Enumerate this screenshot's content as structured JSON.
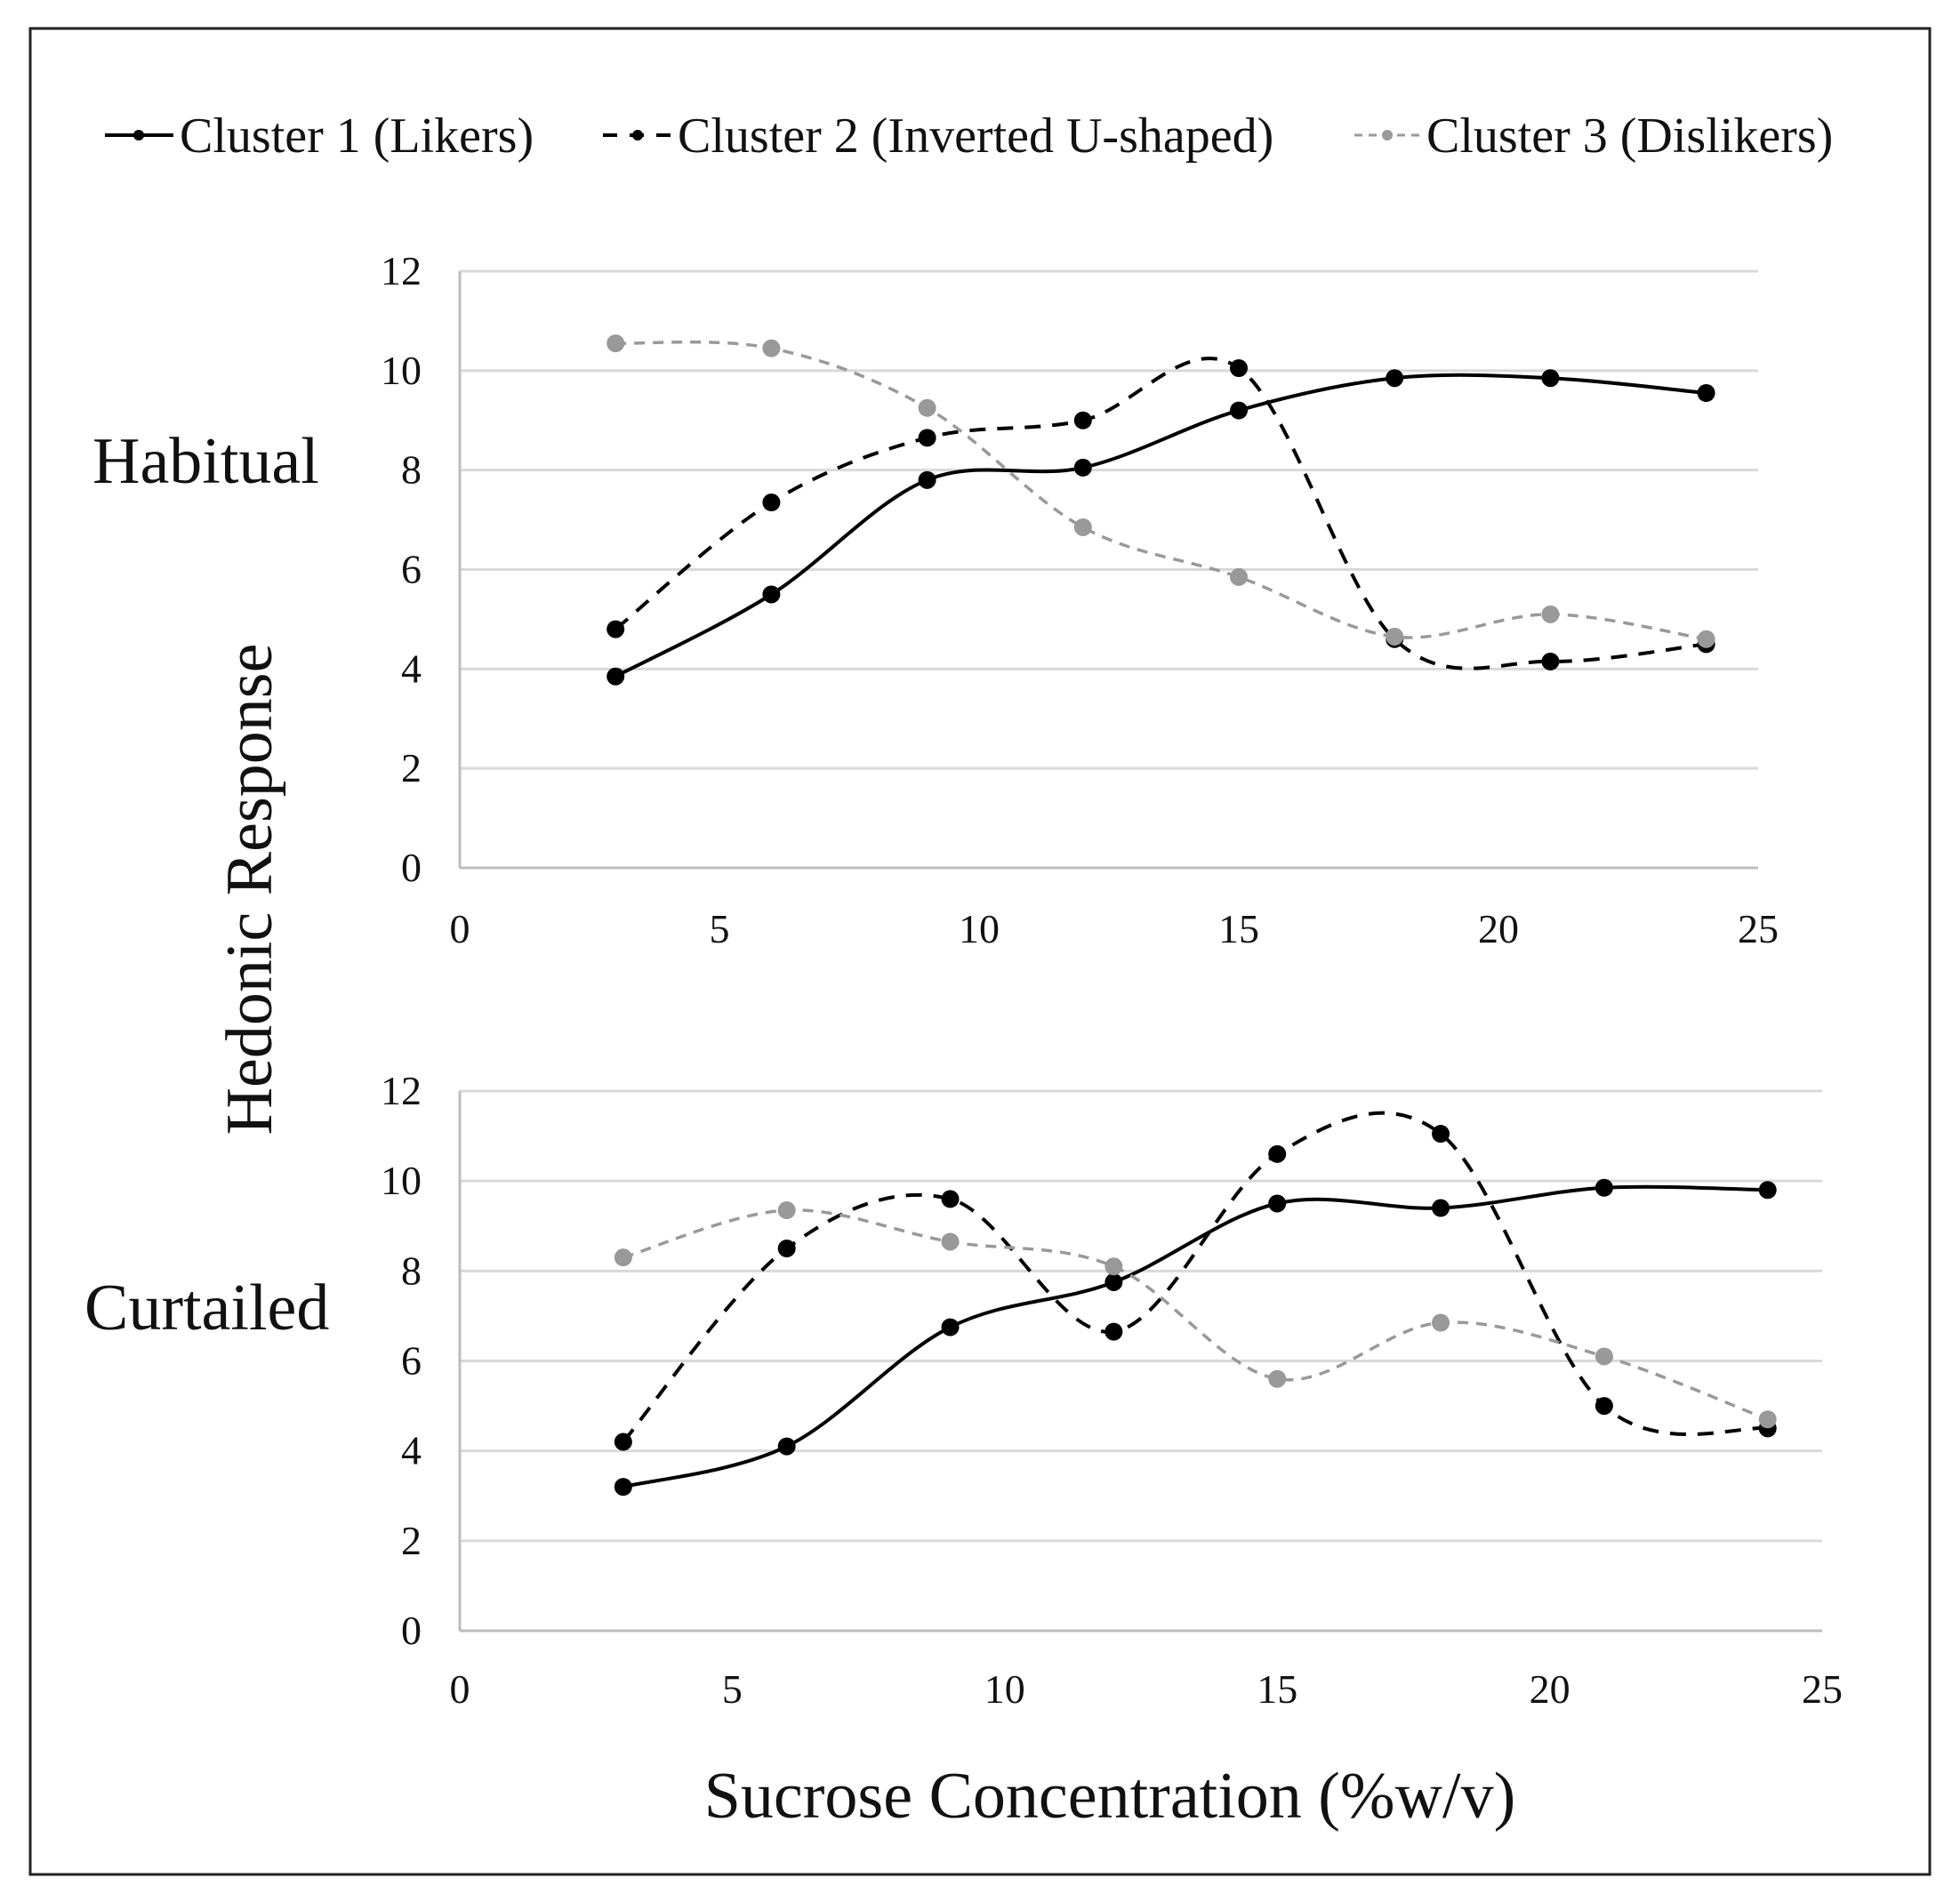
{
  "figure": {
    "legend": [
      {
        "label": "Cluster 1 (Likers)",
        "color": "#000000",
        "dash": "solid"
      },
      {
        "label": "Cluster 2 (Inverted U-shaped)",
        "color": "#000000",
        "dash": "dashed"
      },
      {
        "label": "Cluster 3 (Dislikers)",
        "color": "#999999",
        "dash": "dashed"
      }
    ],
    "ylabel": "Hedonic Response",
    "xlabel": "Sucrose Concentration (%w/v)"
  },
  "chart_data": [
    {
      "type": "line",
      "panel_label": "Habitual",
      "xlabel": "Sucrose Concentration (%w/v)",
      "ylabel": "Hedonic Response",
      "xlim": [
        0,
        25
      ],
      "ylim": [
        0,
        12
      ],
      "x_ticks": [
        "0",
        "5",
        "10",
        "15",
        "20",
        "25"
      ],
      "y_ticks": [
        "0",
        "2",
        "4",
        "6",
        "8",
        "10",
        "12"
      ],
      "x": [
        3,
        6,
        9,
        12,
        15,
        18,
        21,
        24
      ],
      "series": [
        {
          "name": "Cluster 1 (Likers)",
          "color": "#000000",
          "dash": "solid",
          "values": [
            3.85,
            5.5,
            7.8,
            8.05,
            9.2,
            9.85,
            9.85,
            9.55
          ]
        },
        {
          "name": "Cluster 2 (Inverted U-shaped)",
          "color": "#000000",
          "dash": "dashed",
          "values": [
            4.8,
            7.35,
            8.65,
            9.0,
            10.05,
            4.6,
            4.15,
            4.5
          ]
        },
        {
          "name": "Cluster 3 (Dislikers)",
          "color": "#999999",
          "dash": "dashed",
          "values": [
            10.55,
            10.45,
            9.25,
            6.85,
            5.85,
            4.65,
            5.1,
            4.6
          ]
        }
      ]
    },
    {
      "type": "line",
      "panel_label": "Curtailed",
      "xlabel": "Sucrose Concentration (%w/v)",
      "ylabel": "Hedonic Response",
      "xlim": [
        0,
        25
      ],
      "ylim": [
        0,
        12
      ],
      "x_ticks": [
        "0",
        "5",
        "10",
        "15",
        "20",
        "25"
      ],
      "y_ticks": [
        "0",
        "2",
        "4",
        "6",
        "8",
        "10",
        "12"
      ],
      "x": [
        3,
        6,
        9,
        12,
        15,
        18,
        21,
        24
      ],
      "series": [
        {
          "name": "Cluster 1 (Likers)",
          "color": "#000000",
          "dash": "solid",
          "values": [
            3.2,
            4.1,
            6.75,
            7.75,
            9.5,
            9.4,
            9.85,
            9.8
          ]
        },
        {
          "name": "Cluster 2 (Inverted U-shaped)",
          "color": "#000000",
          "dash": "dashed",
          "values": [
            4.2,
            8.5,
            9.6,
            6.65,
            10.6,
            11.05,
            5.0,
            4.5
          ]
        },
        {
          "name": "Cluster 3 (Dislikers)",
          "color": "#999999",
          "dash": "dashed",
          "values": [
            8.3,
            9.35,
            8.65,
            8.1,
            5.6,
            6.85,
            6.1,
            4.7
          ]
        }
      ]
    }
  ]
}
